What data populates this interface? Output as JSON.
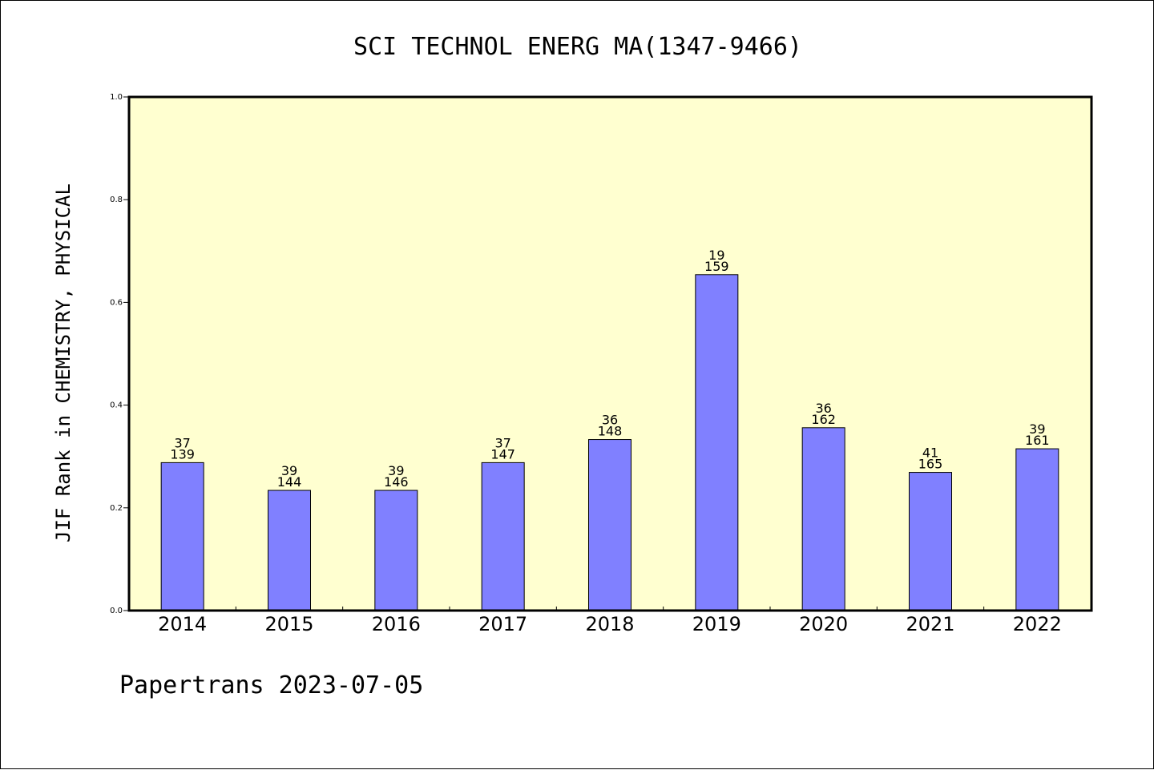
{
  "chart_data": {
    "type": "bar",
    "title": "SCI TECHNOL ENERG MA(1347-9466)",
    "ylabel": "JIF Rank in CHEMISTRY, PHYSICAL",
    "xlabel": "",
    "ylim": [
      0,
      1.0
    ],
    "yticks": [
      "0.0",
      "0.2",
      "0.4",
      "0.6",
      "0.8",
      "1.0"
    ],
    "categories": [
      "2014",
      "2015",
      "2016",
      "2017",
      "2018",
      "2019",
      "2020",
      "2021",
      "2022"
    ],
    "values": [
      0.288,
      0.234,
      0.234,
      0.288,
      0.333,
      0.654,
      0.356,
      0.269,
      0.315
    ],
    "labels_top": [
      "37",
      "39",
      "39",
      "37",
      "36",
      "19",
      "36",
      "41",
      "39"
    ],
    "labels_bottom": [
      "139",
      "144",
      "146",
      "147",
      "148",
      "159",
      "162",
      "165",
      "161"
    ],
    "grid": false,
    "colors": {
      "plot_bg": "#ffffd0",
      "bar": "#8080ff",
      "bar_edge": "#000000"
    }
  },
  "footer": "Papertrans 2023-07-05"
}
